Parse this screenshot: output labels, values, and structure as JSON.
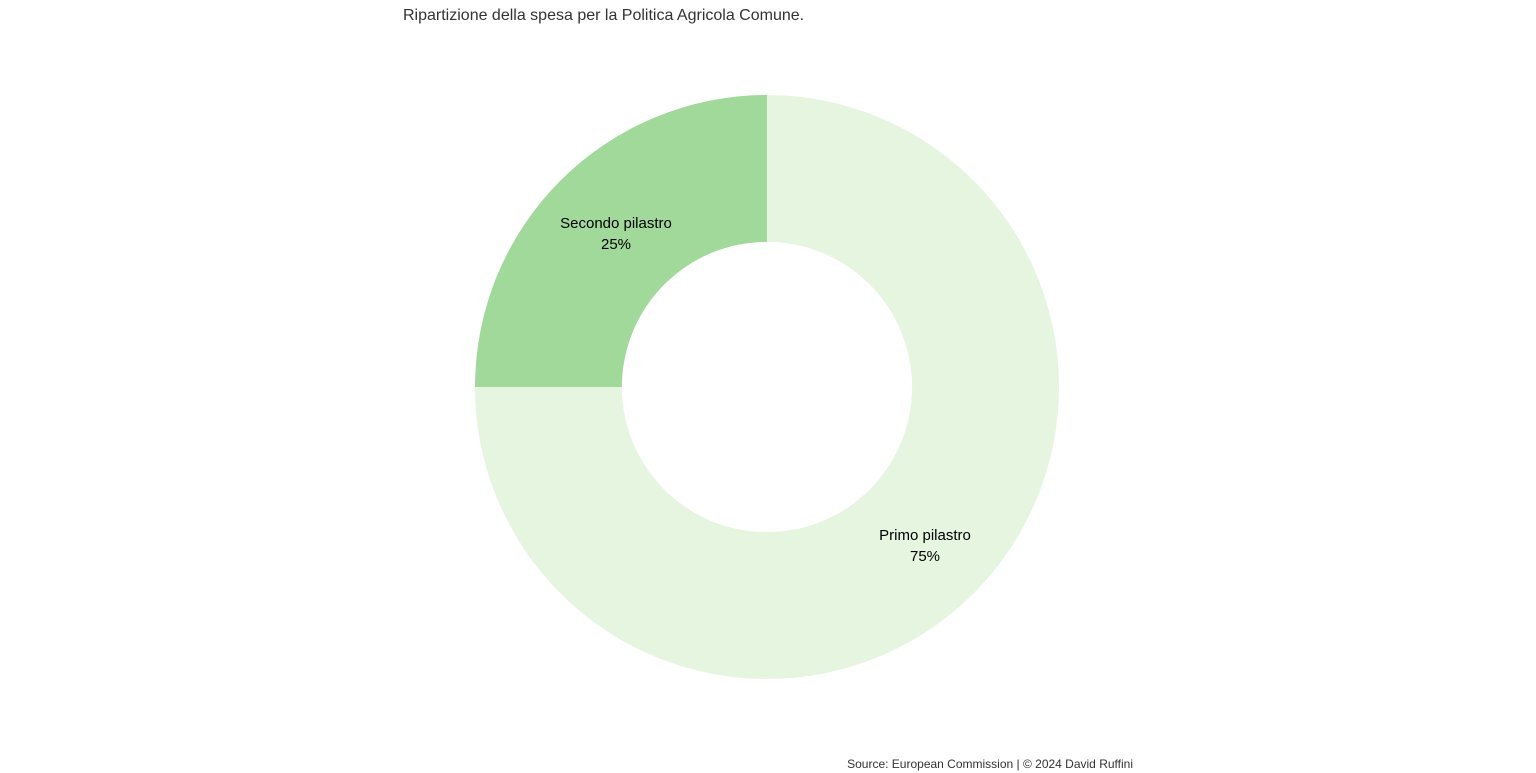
{
  "title": "Ripartizione della spesa per la Politica Agricola Comune.",
  "credits": "Source: European Commission | © 2024 David Ruffini",
  "slice_labels": {
    "primo": {
      "name": "Primo pilastro",
      "value": "75%"
    },
    "secondo": {
      "name": "Secondo pilastro",
      "value": "25%"
    }
  },
  "chart_data": {
    "type": "pie",
    "subtype": "donut",
    "title": "Ripartizione della spesa per la Politica Agricola Comune.",
    "categories": [
      "Primo pilastro",
      "Secondo pilastro"
    ],
    "values": [
      75,
      25
    ],
    "unit": "%",
    "colors": [
      "#e5f5e0",
      "#a1d99b"
    ],
    "inner_radius_ratio": 0.497,
    "start_angle_deg": 0,
    "direction": "clockwise",
    "legend": "none",
    "data_labels_visible": true,
    "source": "Source: European Commission | © 2024 David Ruffini"
  }
}
